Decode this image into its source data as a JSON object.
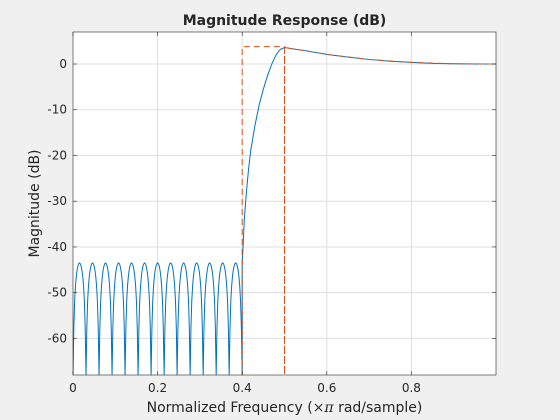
{
  "chart_data": {
    "type": "line",
    "title": "Magnitude Response (dB)",
    "xlabel_prefix": "Normalized Frequency  (",
    "xlabel_symbol": "×π",
    "xlabel_suffix": " rad/sample)",
    "ylabel": "Magnitude (dB)",
    "xlim": [
      0,
      1
    ],
    "ylim": [
      -68,
      7
    ],
    "grid": true,
    "x_ticks": [
      0,
      0.2,
      0.4,
      0.6,
      0.8
    ],
    "x_tick_labels": [
      "0",
      "0.2",
      "0.4",
      "0.6",
      "0.8"
    ],
    "y_ticks": [
      0,
      -10,
      -20,
      -30,
      -40,
      -50,
      -60
    ],
    "y_tick_labels": [
      "0",
      "-10",
      "-20",
      "-30",
      "-40",
      "-50",
      "-60"
    ],
    "colors": {
      "response": "#0072bd",
      "mask": "#d95319",
      "grid": "#dfdfdf",
      "axes": "#262626"
    },
    "stopband": {
      "x_start": 0,
      "x_end": 0.4,
      "num_lobes": 13,
      "ripple_peak_db": -43.5,
      "null_db": -68
    },
    "transition": [
      [
        0.4,
        -43.5
      ],
      [
        0.402,
        -40
      ],
      [
        0.405,
        -34
      ],
      [
        0.41,
        -28
      ],
      [
        0.415,
        -23
      ],
      [
        0.42,
        -19
      ],
      [
        0.43,
        -13.5
      ],
      [
        0.44,
        -9
      ],
      [
        0.45,
        -5.5
      ],
      [
        0.46,
        -2.5
      ],
      [
        0.47,
        0
      ],
      [
        0.48,
        2
      ],
      [
        0.49,
        3.2
      ],
      [
        0.5,
        3.6
      ],
      [
        0.52,
        3.3
      ],
      [
        0.55,
        2.9
      ],
      [
        0.6,
        2.1
      ],
      [
        0.65,
        1.5
      ],
      [
        0.7,
        1.0
      ],
      [
        0.75,
        0.6
      ],
      [
        0.8,
        0.35
      ],
      [
        0.85,
        0.15
      ],
      [
        0.9,
        0.05
      ],
      [
        0.95,
        0.0
      ],
      [
        1.0,
        0.0
      ]
    ],
    "mask": [
      [
        0.4,
        -68
      ],
      [
        0.4,
        3.8
      ],
      [
        0.5,
        3.8
      ],
      [
        0.5,
        -68
      ],
      [
        0.5,
        3.6
      ],
      [
        0.55,
        2.9
      ],
      [
        0.6,
        2.1
      ],
      [
        0.7,
        1.0
      ],
      [
        0.8,
        0.35
      ],
      [
        0.9,
        0.05
      ],
      [
        1.0,
        0.0
      ]
    ]
  }
}
